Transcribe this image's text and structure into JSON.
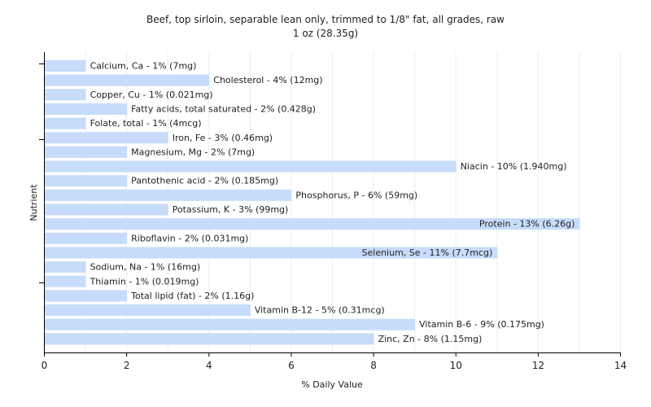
{
  "chart_data": {
    "type": "bar",
    "orientation": "horizontal",
    "title": "Beef, top sirloin, separable lean only, trimmed to 1/8\" fat, all grades, raw",
    "subtitle": "1 oz (28.35g)",
    "xlabel": "% Daily Value",
    "ylabel": "Nutrient",
    "xlim": [
      0,
      14
    ],
    "xticks": [
      0,
      2,
      4,
      6,
      8,
      10,
      12,
      14
    ],
    "grid": true,
    "bar_color": "#c6dcfa",
    "categories": [
      "Calcium, Ca",
      "Cholesterol",
      "Copper, Cu",
      "Fatty acids, total saturated",
      "Folate, total",
      "Iron, Fe",
      "Magnesium, Mg",
      "Niacin",
      "Pantothenic acid",
      "Phosphorus, P",
      "Potassium, K",
      "Protein",
      "Riboflavin",
      "Selenium, Se",
      "Sodium, Na",
      "Thiamin",
      "Total lipid (fat)",
      "Vitamin B-12",
      "Vitamin B-6",
      "Zinc, Zn"
    ],
    "values": [
      1,
      4,
      1,
      2,
      1,
      3,
      2,
      10,
      2,
      6,
      3,
      13,
      2,
      11,
      1,
      1,
      2,
      5,
      9,
      8
    ],
    "labels": [
      "Calcium, Ca - 1% (7mg)",
      "Cholesterol - 4% (12mg)",
      "Copper, Cu - 1% (0.021mg)",
      "Fatty acids, total saturated - 2% (0.428g)",
      "Folate, total - 1% (4mcg)",
      "Iron, Fe - 3% (0.46mg)",
      "Magnesium, Mg - 2% (7mg)",
      "Niacin - 10% (1.940mg)",
      "Pantothenic acid - 2% (0.185mg)",
      "Phosphorus, P - 6% (59mg)",
      "Potassium, K - 3% (99mg)",
      "Protein - 13% (6.26g)",
      "Riboflavin - 2% (0.031mg)",
      "Selenium, Se - 11% (7.7mcg)",
      "Sodium, Na - 1% (16mg)",
      "Thiamin - 1% (0.019mg)",
      "Total lipid (fat) - 2% (1.16g)",
      "Vitamin B-12 - 5% (0.31mcg)",
      "Vitamin B-6 - 9% (0.175mg)",
      "Zinc, Zn - 8% (1.15mg)"
    ]
  }
}
